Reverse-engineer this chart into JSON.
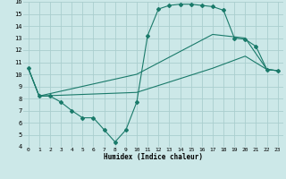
{
  "xlabel": "Humidex (Indice chaleur)",
  "background_color": "#cce8e8",
  "grid_color": "#aacece",
  "line_color": "#1a7a6a",
  "xlim": [
    -0.5,
    23.5
  ],
  "ylim": [
    4,
    16
  ],
  "xticks": [
    0,
    1,
    2,
    3,
    4,
    5,
    6,
    7,
    8,
    9,
    10,
    11,
    12,
    13,
    14,
    15,
    16,
    17,
    18,
    19,
    20,
    21,
    22,
    23
  ],
  "yticks": [
    4,
    5,
    6,
    7,
    8,
    9,
    10,
    11,
    12,
    13,
    14,
    15,
    16
  ],
  "line1_x": [
    0,
    1,
    2,
    3,
    4,
    5,
    6,
    7,
    8,
    9,
    10,
    11,
    12,
    13,
    14,
    15,
    16,
    17,
    18,
    19,
    20,
    21,
    22,
    23
  ],
  "line1_y": [
    10.5,
    8.2,
    8.2,
    7.7,
    7.0,
    6.4,
    6.4,
    5.4,
    4.4,
    5.4,
    7.7,
    13.2,
    15.4,
    15.7,
    15.8,
    15.8,
    15.7,
    15.6,
    15.3,
    13.0,
    12.9,
    12.3,
    10.4,
    10.3
  ],
  "line2_x": [
    0,
    1,
    10,
    17,
    20,
    22,
    23
  ],
  "line2_y": [
    10.5,
    8.2,
    10.0,
    13.3,
    13.0,
    10.4,
    10.3
  ],
  "line3_x": [
    0,
    1,
    10,
    17,
    20,
    22,
    23
  ],
  "line3_y": [
    10.5,
    8.2,
    8.5,
    10.5,
    11.5,
    10.4,
    10.3
  ]
}
